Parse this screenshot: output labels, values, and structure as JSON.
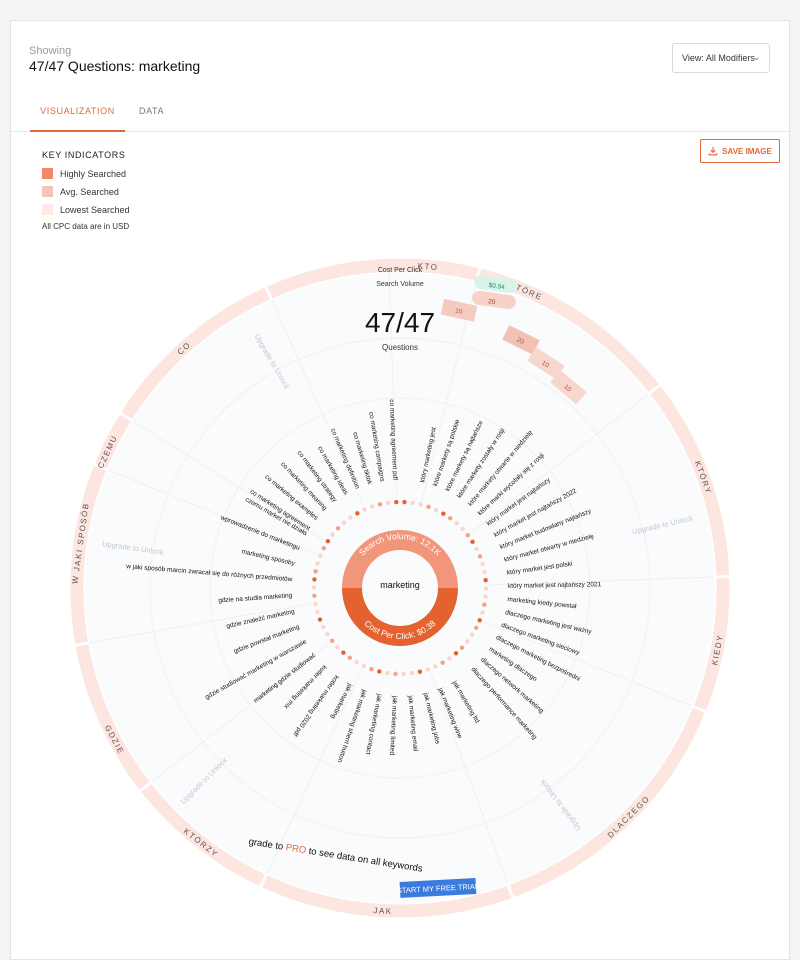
{
  "header": {
    "showing_label": "Showing",
    "title": "47/47 Questions: marketing",
    "view_select": "View: All Modifiers"
  },
  "tabs": [
    {
      "label": "VISUALIZATION"
    },
    {
      "label": "DATA"
    }
  ],
  "toolbar": {
    "save_label": "SAVE IMAGE"
  },
  "key": {
    "title": "KEY INDICATORS",
    "items": [
      {
        "label": "Highly Searched",
        "color": "#f0886a"
      },
      {
        "label": "Avg. Searched",
        "color": "#f5c4b5"
      },
      {
        "label": "Lowest Searched",
        "color": "#fcebe5"
      }
    ],
    "note": "All CPC data are in USD"
  },
  "center": {
    "cpc_legend": "Cost Per Click",
    "sv_legend": "Search Volume",
    "cpc_chip": "$0.94",
    "sv_chip": "20",
    "count": "47/47",
    "count_label": "Questions",
    "keyword": "marketing",
    "search_volume": "Search Volume: 12.1K",
    "cost_per_click": "Cost Per Click: $0.38"
  },
  "colors": {
    "accent": "#e0683a",
    "ring": "#fde6df",
    "dark": "#e4622f",
    "light": "#f1967a",
    "promo_btn": "#3b7be0"
  },
  "upgrade_text": "Upgrade to Unlock",
  "modifiers": [
    {
      "label": "KTO",
      "deg": 5
    },
    {
      "label": "KTÓRE",
      "deg": 23
    },
    {
      "label": "KTÓRY",
      "deg": 70
    },
    {
      "label": "KIEDY",
      "deg": 101
    },
    {
      "label": "DLACZEGO",
      "deg": 135
    },
    {
      "label": "JAK",
      "deg": 183
    },
    {
      "label": "KTÓRZY",
      "deg": 218
    },
    {
      "label": "GDZIE",
      "deg": 242
    },
    {
      "label": "W JAKI SPOSÓB",
      "deg": 278
    },
    {
      "label": "CZEMU",
      "deg": 295
    },
    {
      "label": "CO",
      "deg": 318
    }
  ],
  "right_questions": [
    "który marketing jest",
    "które markety są polskie",
    "które markety są najtańsze",
    "które markety zostały w rosji",
    "które markety otwarte w niedzielę",
    "które marki wycofały się z rosji",
    "który market jest najtańszy",
    "który market jest najtańszy 2022",
    "który market budowlany najtańszy",
    "który market otwarty w niedzielę",
    "który market jest polski",
    "który market jest najtańszy 2021",
    "marketing kiedy powstał",
    "dlaczego marketing jest ważny",
    "dlaczego marketing sieciowy",
    "dlaczego marketing bezpośredni",
    "marketing dlaczego",
    "dlaczego network marketing",
    "dlaczego performance marketing"
  ],
  "bottom_questions": [
    "jak marketing ltd",
    "jak marketing wine",
    "jak marketing jobs",
    "jak marketing email",
    "jak marketing limited",
    "jak marketing contact",
    "jak marketing sherri hutton",
    "jak marketing",
    "kotler marketing 2020 pdf",
    "kotler marketing mix"
  ],
  "left_questions": [
    "marketing gdzie studiować",
    "gdzie studiować marketing w warszawie",
    "gdzie powstał marketing",
    "gdzie znaleźć marketing",
    "gdzie na studia marketing",
    "w jaki sposób marcin zwracał się do różnych przedmiotów",
    "marketing sposoby",
    "wprowadzenie do marketingu",
    "czemu market nie działa"
  ],
  "top_questions": [
    "co marketing agreement",
    "co marketing examples",
    "co marketing meaning",
    "co marketing strategy",
    "co marketing ideas",
    "co marketing definition",
    "co marketing tiktok",
    "co marketing campaigns",
    "co marketing agreement pdf"
  ],
  "kto_bars": [
    "10"
  ],
  "ktore_bars": [
    "20",
    "10",
    "10"
  ],
  "promo": {
    "text_a": "grade to ",
    "text_pro": "PRO",
    "text_b": " to see data on all keywords",
    "button": "START MY FREE TRIAL"
  }
}
